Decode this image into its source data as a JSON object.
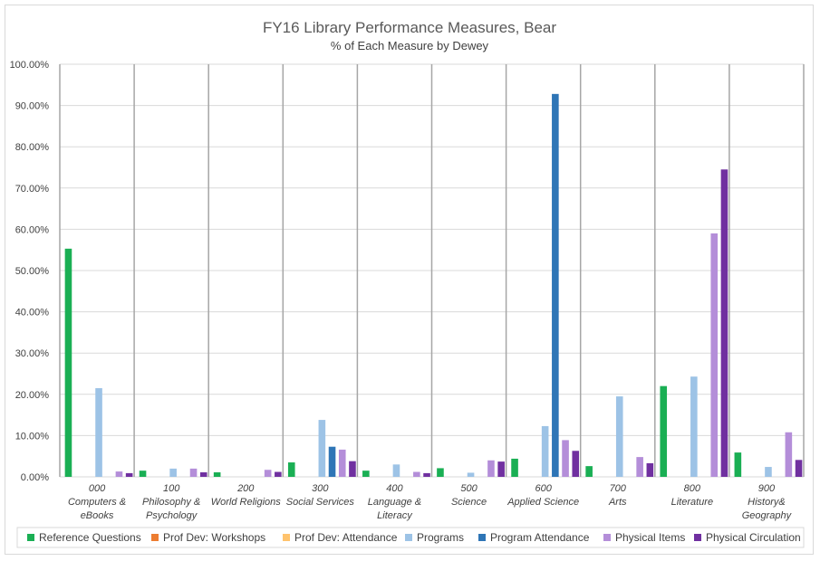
{
  "chart_data": {
    "type": "bar",
    "title": "FY16 Library Performance Measures, Bear",
    "subtitle": "% of Each Measure by Dewey",
    "categories": [
      [
        "000",
        "Computers &",
        "eBooks"
      ],
      [
        "100",
        "Philosophy &",
        "Psychology"
      ],
      [
        "200",
        "World Religions"
      ],
      [
        "300",
        "Social Services"
      ],
      [
        "400",
        "Language &",
        "Literacy"
      ],
      [
        "500",
        "Science"
      ],
      [
        "600",
        "Applied Science"
      ],
      [
        "700",
        "Arts"
      ],
      [
        "800",
        "Literature"
      ],
      [
        "900",
        "History&",
        "Geography"
      ]
    ],
    "ylim": [
      0,
      100
    ],
    "yticks": [
      "0.00%",
      "10.00%",
      "20.00%",
      "30.00%",
      "40.00%",
      "50.00%",
      "60.00%",
      "70.00%",
      "80.00%",
      "90.00%",
      "100.00%"
    ],
    "grid": true,
    "legend_position": "bottom",
    "series": [
      {
        "name": "Reference Questions",
        "color": "#1aaf54",
        "values": [
          55.3,
          1.5,
          1.1,
          3.5,
          1.5,
          2.1,
          4.4,
          2.6,
          22.0,
          5.9
        ]
      },
      {
        "name": "Prof Dev: Workshops",
        "color": "#ed7d31",
        "values": [
          0,
          0,
          0,
          0,
          0,
          0,
          0,
          0,
          0,
          0
        ]
      },
      {
        "name": "Prof Dev: Attendance",
        "color": "#ffc36d",
        "values": [
          0,
          0,
          0,
          0,
          0,
          0,
          0,
          0,
          0,
          0
        ]
      },
      {
        "name": "Programs",
        "color": "#9dc3e6",
        "values": [
          21.5,
          2.0,
          0,
          13.8,
          3.0,
          1.0,
          12.3,
          19.5,
          24.3,
          2.4
        ]
      },
      {
        "name": "Program Attendance",
        "color": "#2e75b6",
        "values": [
          0,
          0,
          0,
          7.3,
          0,
          0,
          92.8,
          0,
          0,
          0
        ]
      },
      {
        "name": "Physical Items",
        "color": "#b48ed9",
        "values": [
          1.3,
          2.0,
          1.7,
          6.6,
          1.2,
          4.0,
          8.9,
          4.8,
          59.0,
          10.8
        ]
      },
      {
        "name": "Physical Circulation",
        "color": "#7030a0",
        "values": [
          0.9,
          1.1,
          1.2,
          3.8,
          0.9,
          3.7,
          6.3,
          3.3,
          74.5,
          4.1
        ]
      }
    ]
  }
}
